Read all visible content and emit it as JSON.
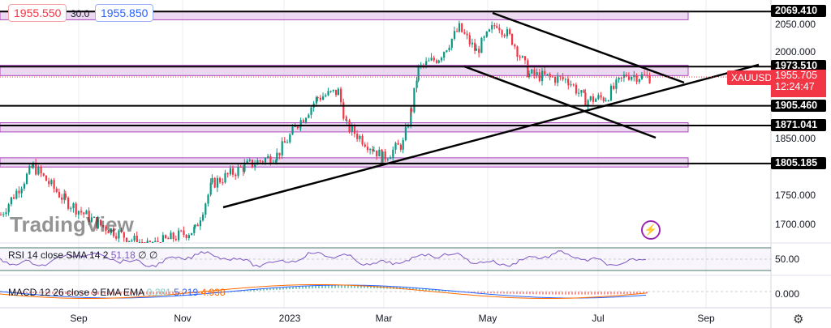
{
  "symbol": "XAUUSD",
  "header": {
    "bid": "1955.550",
    "spread": "30.0",
    "ask": "1955.850"
  },
  "last_price": {
    "value": "1955.705",
    "countdown": "12:24:47",
    "color": "#f23645"
  },
  "price_axis": {
    "ticks": [
      2050,
      2000,
      1850,
      1750,
      1700
    ],
    "labels": [
      "2050.000",
      "2000.000",
      "1850.000",
      "1750.000",
      "1700.000"
    ]
  },
  "levels": [
    {
      "value": 2069.41,
      "label": "2069.410"
    },
    {
      "value": 1973.51,
      "label": "1973.510"
    },
    {
      "value": 1905.46,
      "label": "1905.460"
    },
    {
      "value": 1871.041,
      "label": "1871.041"
    },
    {
      "value": 1805.185,
      "label": "1805.185"
    }
  ],
  "zones": [
    [
      2055,
      2070
    ],
    [
      1958,
      1976
    ],
    [
      1860,
      1876
    ],
    [
      1799,
      1815
    ]
  ],
  "zone_color": "#e1bee7",
  "time_axis": [
    "Sep",
    "Nov",
    "2023",
    "Mar",
    "May",
    "Jul",
    "Sep"
  ],
  "price_series": [
    [
      "2022-07-15",
      1716
    ],
    [
      "2022-08-03",
      1800
    ],
    [
      "2022-08-22",
      1740
    ],
    [
      "2022-09-10",
      1700
    ],
    [
      "2022-10-09",
      1660
    ],
    [
      "2022-11-06",
      1690
    ],
    [
      "2022-11-16",
      1770
    ],
    [
      "2022-12-05",
      1800
    ],
    [
      "2022-12-24",
      1820
    ],
    [
      "2023-01-07",
      1880
    ],
    [
      "2023-01-17",
      1920
    ],
    [
      "2023-01-29",
      1930
    ],
    [
      "2023-02-03",
      1870
    ],
    [
      "2023-02-19",
      1830
    ],
    [
      "2023-02-24",
      1815
    ],
    [
      "2023-03-08",
      1840
    ],
    [
      "2023-03-13",
      1900
    ],
    [
      "2023-03-17",
      1970
    ],
    [
      "2023-03-29",
      1990
    ],
    [
      "2023-04-10",
      2040
    ],
    [
      "2023-04-20",
      2000
    ],
    [
      "2023-05-02",
      2050
    ],
    [
      "2023-05-11",
      2020
    ],
    [
      "2023-05-21",
      1960
    ],
    [
      "2023-06-13",
      1950
    ],
    [
      "2023-06-23",
      1915
    ],
    [
      "2023-07-05",
      1920
    ],
    [
      "2023-07-17",
      1960
    ],
    [
      "2023-07-31",
      1955
    ]
  ],
  "colors": {
    "up": "#089981",
    "down": "#f23645",
    "rsi": "#7e57c2",
    "macd": "#2962ff",
    "signal": "#ff6d00"
  },
  "rsi": {
    "label": "RSI 14 close SMA 14 2",
    "value": "51.18",
    "extra1": "∅",
    "extra2": "∅",
    "axis": "50.00"
  },
  "macd": {
    "label": "MACD 12 26 close 9 EMA EMA",
    "hist": "0.281",
    "macd": "5.219",
    "signal": "4.938",
    "axis": "0.000"
  },
  "watermark": "TradingView"
}
